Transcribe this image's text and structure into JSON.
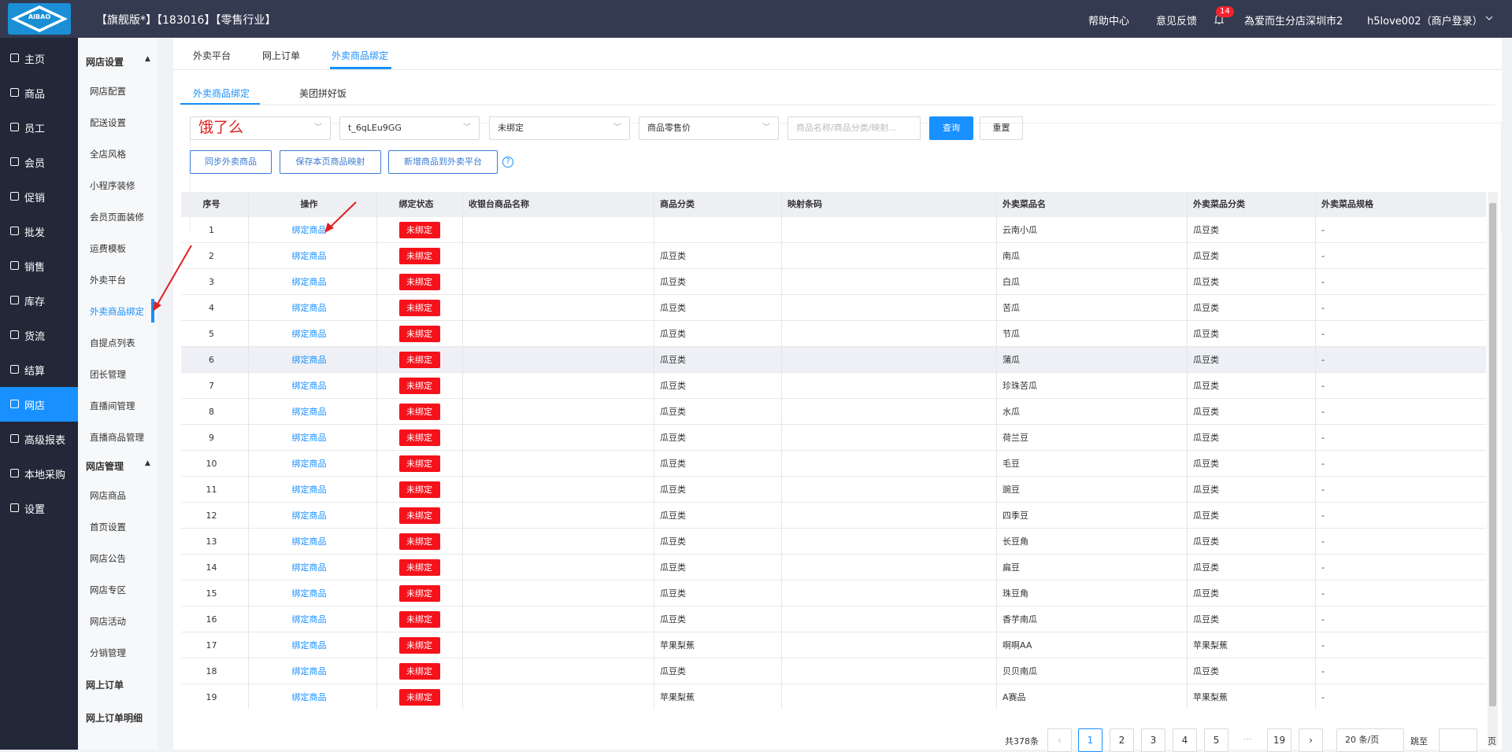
{
  "header": {
    "title": "【旗舰版*】【183016】【零售行业】",
    "logo": "AIBAO",
    "links": [
      "帮助中心",
      "意见反馈"
    ],
    "badge": "14",
    "store": "為爱而生分店深圳市2",
    "user": "h5love002（商户登录）"
  },
  "main_menu": {
    "items": [
      "主页",
      "商品",
      "员工",
      "会员",
      "促销",
      "批发",
      "销售",
      "库存",
      "货流",
      "结算",
      "网店",
      "高级报表",
      "本地采购",
      "设置"
    ],
    "active": 10
  },
  "sub_menu": {
    "groups": [
      {
        "title": "网店设置",
        "items": [
          "网店配置",
          "配送设置",
          "全店风格",
          "小程序装修",
          "会员页面装修",
          "运费模板",
          "外卖平台",
          "外卖商品绑定",
          "自提点列表",
          "团长管理",
          "直播间管理",
          "直播商品管理"
        ]
      },
      {
        "title": "网店管理",
        "items": [
          "网店商品",
          "首页设置",
          "网店公告",
          "网店专区",
          "网店活动",
          "分销管理"
        ]
      }
    ],
    "links": [
      "网上订单",
      "网上订单明细"
    ],
    "active": "外卖商品绑定"
  },
  "tabs": [
    "外卖平台",
    "网上订单",
    "外卖商品绑定"
  ],
  "subtabs": [
    "外卖商品绑定",
    "美团拼好饭"
  ],
  "filters": {
    "platform": "饿了么",
    "shop": "t_6qLEu9GG",
    "status": "未绑定",
    "price": "商品零售价",
    "search_placeholder": "商品名称/商品分类/映射...",
    "query": "查询",
    "reset": "重置"
  },
  "actions": [
    "同步外卖商品",
    "保存本页商品映射",
    "新增商品到外卖平台"
  ],
  "table": {
    "columns": [
      "序号",
      "操作",
      "绑定状态",
      "收银台商品名称",
      "商品分类",
      "映射条码",
      "外卖菜品名",
      "外卖菜品分类",
      "外卖菜品规格"
    ],
    "rows": [
      [
        1,
        "绑定商品",
        "未绑定",
        null,
        null,
        null,
        "云南小瓜",
        "瓜豆类",
        "-"
      ],
      [
        2,
        "绑定商品",
        "未绑定",
        null,
        "瓜豆类",
        null,
        "南瓜",
        "瓜豆类",
        "-"
      ],
      [
        3,
        "绑定商品",
        "未绑定",
        null,
        "瓜豆类",
        null,
        "白瓜",
        "瓜豆类",
        "-"
      ],
      [
        4,
        "绑定商品",
        "未绑定",
        null,
        "瓜豆类",
        null,
        "苦瓜",
        "瓜豆类",
        "-"
      ],
      [
        5,
        "绑定商品",
        "未绑定",
        null,
        "瓜豆类",
        null,
        "节瓜",
        "瓜豆类",
        "-"
      ],
      [
        6,
        "绑定商品",
        "未绑定",
        null,
        "瓜豆类",
        null,
        "蒲瓜",
        "瓜豆类",
        "-"
      ],
      [
        7,
        "绑定商品",
        "未绑定",
        null,
        "瓜豆类",
        null,
        "珍珠苦瓜",
        "瓜豆类",
        "-"
      ],
      [
        8,
        "绑定商品",
        "未绑定",
        null,
        "瓜豆类",
        null,
        "水瓜",
        "瓜豆类",
        "-"
      ],
      [
        9,
        "绑定商品",
        "未绑定",
        null,
        "瓜豆类",
        null,
        "荷兰豆",
        "瓜豆类",
        "-"
      ],
      [
        10,
        "绑定商品",
        "未绑定",
        null,
        "瓜豆类",
        null,
        "毛豆",
        "瓜豆类",
        "-"
      ],
      [
        11,
        "绑定商品",
        "未绑定",
        null,
        "瓜豆类",
        null,
        "豌豆",
        "瓜豆类",
        "-"
      ],
      [
        12,
        "绑定商品",
        "未绑定",
        null,
        "瓜豆类",
        null,
        "四季豆",
        "瓜豆类",
        "-"
      ],
      [
        13,
        "绑定商品",
        "未绑定",
        null,
        "瓜豆类",
        null,
        "长豆角",
        "瓜豆类",
        "-"
      ],
      [
        14,
        "绑定商品",
        "未绑定",
        null,
        "瓜豆类",
        null,
        "扁豆",
        "瓜豆类",
        "-"
      ],
      [
        15,
        "绑定商品",
        "未绑定",
        null,
        "瓜豆类",
        null,
        "珠豆角",
        "瓜豆类",
        "-"
      ],
      [
        16,
        "绑定商品",
        "未绑定",
        null,
        "瓜豆类",
        null,
        "香芋南瓜",
        "瓜豆类",
        "-"
      ],
      [
        17,
        "绑定商品",
        "未绑定",
        null,
        "苹果梨蕉",
        null,
        "啊啊AA",
        "苹果梨蕉",
        "-"
      ],
      [
        18,
        "绑定商品",
        "未绑定",
        null,
        "瓜豆类",
        null,
        "贝贝南瓜",
        "瓜豆类",
        "-"
      ],
      [
        19,
        "绑定商品",
        "未绑定",
        null,
        "苹果梨蕉",
        null,
        "A赛品",
        "苹果梨蕉",
        "-"
      ]
    ],
    "highlight_row": 5
  },
  "pagination": {
    "total": "共378条",
    "pages": [
      "1",
      "2",
      "3",
      "4",
      "5",
      "···",
      "19"
    ],
    "active": 0,
    "page_size": "20 条/页",
    "jump": "跳至",
    "unit": "页"
  }
}
